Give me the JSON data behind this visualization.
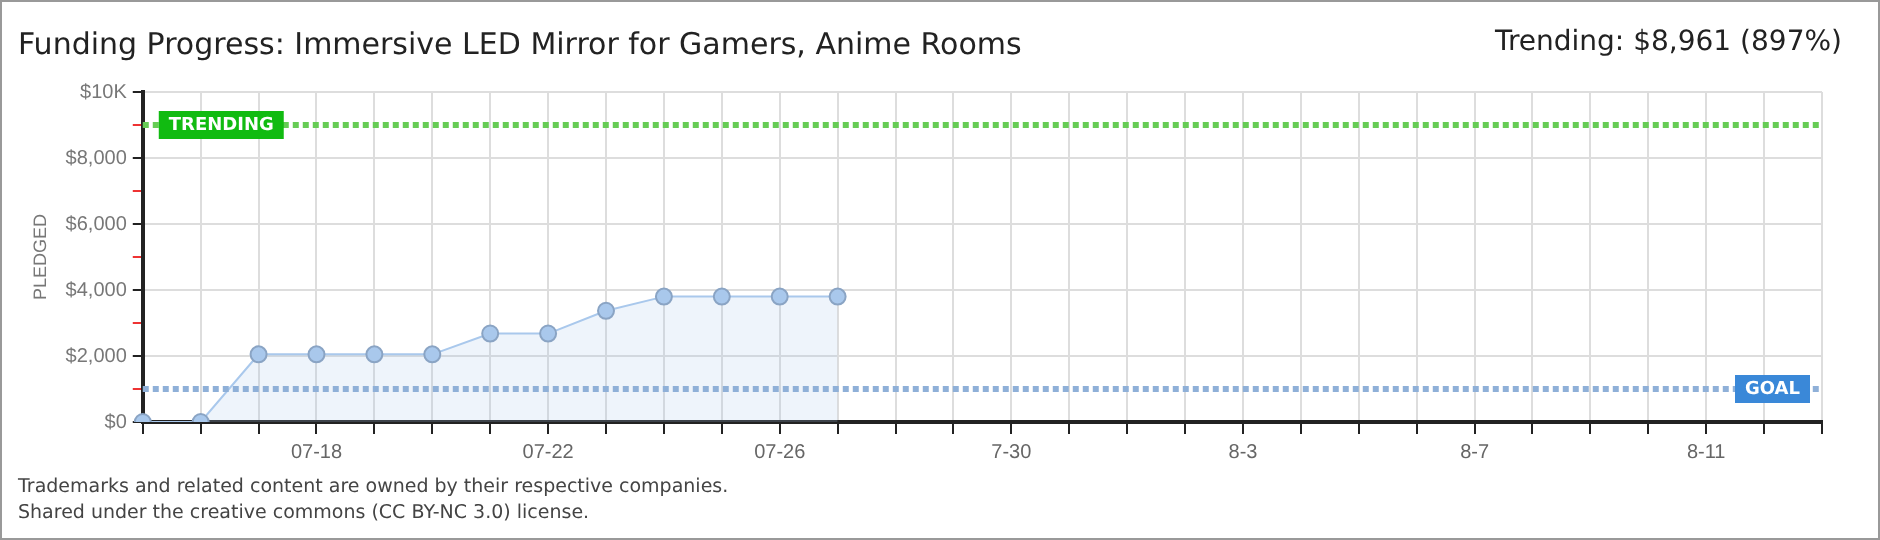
{
  "chart_data": {
    "type": "area",
    "title": "Funding Progress: Immersive LED Mirror for Gamers, Anime Rooms",
    "subtitle": "Trending: $8,961 (897%)",
    "ylabel": "PLEDGED",
    "categories": [
      null,
      null,
      null,
      "07-18",
      null,
      null,
      null,
      "07-22",
      null,
      null,
      null,
      "07-26",
      null,
      null,
      null,
      "7-30",
      null,
      null,
      null,
      "8-3",
      null,
      null,
      null,
      "8-7",
      null,
      null,
      null,
      "8-11",
      null,
      null
    ],
    "series": [
      {
        "color": "#a9c8ec",
        "values": [
          0,
          0,
          2050,
          2050,
          2050,
          2050,
          2680,
          2680,
          3370,
          3800,
          3800,
          3800,
          3800,
          null,
          null,
          null,
          null,
          null,
          null,
          null,
          null,
          null,
          null,
          null,
          null,
          null,
          null,
          null,
          null,
          null
        ]
      }
    ],
    "ylim": [
      0,
      10000
    ],
    "yticks": [
      {
        "value": 0,
        "label": "$0"
      },
      {
        "value": 1000,
        "label": null
      },
      {
        "value": 2000,
        "label": "$2,000"
      },
      {
        "value": 3000,
        "label": null
      },
      {
        "value": 4000,
        "label": "$4,000"
      },
      {
        "value": 5000,
        "label": null
      },
      {
        "value": 6000,
        "label": "$6,000"
      },
      {
        "value": 7000,
        "label": null
      },
      {
        "value": 8000,
        "label": "$8,000"
      },
      {
        "value": 9000,
        "label": null
      },
      {
        "value": 10000,
        "label": "$10K"
      }
    ],
    "ref_lines": [
      {
        "axis": "y",
        "value": 9000,
        "label": "TRENDING",
        "color": "#66cc55",
        "line_style": "dotted"
      },
      {
        "axis": "y",
        "value": 1000,
        "label": "GOAL",
        "color": "#8fb0d8",
        "line_style": "dotted"
      }
    ],
    "grid": true,
    "marker": "circle",
    "legend": false,
    "annotations": [
      "Trademarks and related content are owned by their respective companies.",
      "Shared under the creative commons (CC BY-NC 3.0) license."
    ]
  }
}
